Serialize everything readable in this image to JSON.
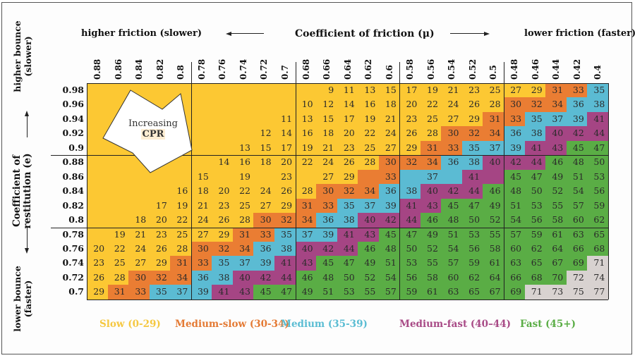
{
  "chart_data": {
    "type": "heatmap",
    "title": "",
    "xlabel": "Coefficient of friction (μ)",
    "xlabel_left": "higher friction (slower)",
    "xlabel_right": "lower friction (faster)",
    "ylabel": "Coefficient of restitution (e)",
    "ylabel_top": "higher bounce (slower)",
    "ylabel_top_lines": [
      "higher bounce",
      "(slower)"
    ],
    "ylabel_bottom": "lower bounce (faster)",
    "ylabel_bottom_lines": [
      "lower bounce",
      "(faster)"
    ],
    "ylabel_lines": [
      "Coefficient of",
      "restitution (e)"
    ],
    "x": [
      "0.88",
      "0.86",
      "0.84",
      "0.82",
      "0.8",
      "0.78",
      "0.76",
      "0.74",
      "0.72",
      "0.7",
      "0.68",
      "0.66",
      "0.64",
      "0.62",
      "0.6",
      "0.58",
      "0.56",
      "0.54",
      "0.52",
      "0.5",
      "0.48",
      "0.46",
      "0.44",
      "0.42",
      "0.4"
    ],
    "y": [
      "0.98",
      "0.96",
      "0.94",
      "0.92",
      "0.9",
      "0.88",
      "0.86",
      "0.84",
      "0.82",
      "0.8",
      "0.78",
      "0.76",
      "0.74",
      "0.72",
      "0.7"
    ],
    "values": [
      [
        null,
        null,
        null,
        null,
        null,
        null,
        null,
        null,
        null,
        null,
        null,
        9,
        11,
        13,
        15,
        17,
        19,
        21,
        23,
        25,
        27,
        29,
        31,
        33,
        35
      ],
      [
        null,
        null,
        null,
        null,
        null,
        null,
        null,
        null,
        null,
        null,
        10,
        12,
        14,
        16,
        18,
        20,
        22,
        24,
        26,
        28,
        30,
        32,
        34,
        36,
        38
      ],
      [
        null,
        null,
        null,
        null,
        null,
        null,
        null,
        null,
        null,
        11,
        13,
        15,
        17,
        19,
        21,
        23,
        25,
        27,
        29,
        31,
        33,
        35,
        37,
        39,
        41
      ],
      [
        null,
        null,
        null,
        null,
        null,
        null,
        null,
        null,
        12,
        14,
        16,
        18,
        20,
        22,
        24,
        26,
        28,
        30,
        32,
        34,
        36,
        38,
        40,
        42,
        44
      ],
      [
        null,
        null,
        null,
        null,
        null,
        null,
        null,
        13,
        15,
        17,
        19,
        21,
        23,
        25,
        27,
        29,
        31,
        33,
        35,
        37,
        39,
        41,
        43,
        45,
        47
      ],
      [
        null,
        null,
        null,
        null,
        null,
        null,
        14,
        16,
        18,
        20,
        22,
        24,
        26,
        28,
        30,
        32,
        34,
        36,
        38,
        40,
        42,
        44,
        46,
        48,
        50
      ],
      [
        null,
        null,
        null,
        null,
        null,
        15,
        null,
        19,
        null,
        23,
        null,
        27,
        29,
        null,
        33,
        null,
        37,
        null,
        41,
        null,
        45,
        47,
        49,
        51,
        53
      ],
      [
        null,
        null,
        null,
        null,
        16,
        18,
        20,
        22,
        24,
        26,
        28,
        30,
        32,
        34,
        36,
        38,
        40,
        42,
        44,
        46,
        48,
        50,
        52,
        54,
        56
      ],
      [
        null,
        null,
        null,
        17,
        19,
        21,
        23,
        25,
        27,
        29,
        31,
        33,
        35,
        37,
        39,
        41,
        43,
        45,
        47,
        49,
        51,
        53,
        55,
        57,
        59
      ],
      [
        null,
        null,
        18,
        20,
        22,
        24,
        26,
        28,
        30,
        32,
        34,
        36,
        38,
        40,
        42,
        44,
        46,
        48,
        50,
        52,
        54,
        56,
        58,
        60,
        62
      ],
      [
        null,
        19,
        21,
        23,
        25,
        27,
        29,
        31,
        33,
        35,
        37,
        39,
        41,
        43,
        45,
        47,
        49,
        51,
        53,
        55,
        57,
        59,
        61,
        63,
        65
      ],
      [
        20,
        22,
        24,
        26,
        28,
        30,
        32,
        34,
        36,
        38,
        40,
        42,
        44,
        46,
        48,
        50,
        52,
        54,
        56,
        58,
        60,
        62,
        64,
        66,
        68
      ],
      [
        23,
        25,
        27,
        29,
        31,
        33,
        35,
        37,
        39,
        41,
        43,
        45,
        47,
        49,
        51,
        53,
        55,
        57,
        59,
        61,
        63,
        65,
        67,
        69,
        71
      ],
      [
        26,
        28,
        30,
        32,
        34,
        36,
        38,
        40,
        42,
        44,
        46,
        48,
        50,
        52,
        54,
        56,
        58,
        60,
        62,
        64,
        66,
        68,
        70,
        72,
        74
      ],
      [
        29,
        31,
        33,
        35,
        37,
        39,
        41,
        43,
        45,
        47,
        49,
        51,
        53,
        55,
        57,
        59,
        61,
        63,
        65,
        67,
        69,
        71,
        73,
        75,
        77
      ]
    ],
    "cell_categories": [
      "SSSSSSSSSSSSSSSSSSSSSSmmM",
      "SSSSSSSSSSSSSSSSSSSSmmmMM",
      "SSSSSSSSSSSSSSSSSSSmmMMMf",
      "SSSSSSSSSSSSSSSSSmmmMMfff",
      "SSSSSSSSSSSSSSSSmmMMMffFF",
      "SSSSSSSSSSSSSSmmmMMfffFFF",
      "SSSSSSSSSSSSSmmMMMffFFFFF",
      "SSSSSSSSSSSmmmMMfffFFFFFF",
      "SSSSSSSSSSmmMMMffFFFFFFFF",
      "SSSSSSSSmmmMMfffFFFFFFFFF",
      "SSSSSSSmmMMMffFFFFFFFFFFF",
      "SSSSSmmmMMfffFFFFFFFFFFFF",
      "SSSSmmMMMffFFFFFFFFFFFFFX",
      "SSmmmMMfffFFFFFFFFFFFFFXX",
      "SmmMMMffFFFFFFFFFFFFFXXXX"
    ],
    "category_key": {
      "S": "slow",
      "m": "medium-slow",
      "M": "medium",
      "f": "medium-fast",
      "F": "fast",
      "X": "beyond"
    },
    "categories": [
      {
        "id": "slow",
        "label": "Slow (0-29)",
        "range": [
          0,
          29
        ],
        "color": "#fcc833",
        "text_color": "#f5c842"
      },
      {
        "id": "medium-slow",
        "label": "Medium-slow (30-34)",
        "range": [
          30,
          34
        ],
        "color": "#ea7d33",
        "text_color": "#e47a34"
      },
      {
        "id": "medium",
        "label": "Medium (35-39)",
        "range": [
          35,
          39
        ],
        "color": "#5bbbd3",
        "text_color": "#5bbdd3"
      },
      {
        "id": "medium-fast",
        "label": "Medium-fast (40–44)",
        "range": [
          40,
          44
        ],
        "color": "#a54584",
        "text_color": "#a84a86"
      },
      {
        "id": "fast",
        "label": "Fast (45+)",
        "range": [
          45,
          null
        ],
        "color": "#5aad45",
        "text_color": "#5aad45"
      },
      {
        "id": "beyond",
        "label": "",
        "range": [
          71,
          null
        ],
        "color": "#d8d2d0",
        "text_color": "#333333"
      }
    ],
    "annotation": {
      "line1": "Increasing",
      "line2": "CPR"
    },
    "grid": true,
    "legend_position": "bottom"
  }
}
